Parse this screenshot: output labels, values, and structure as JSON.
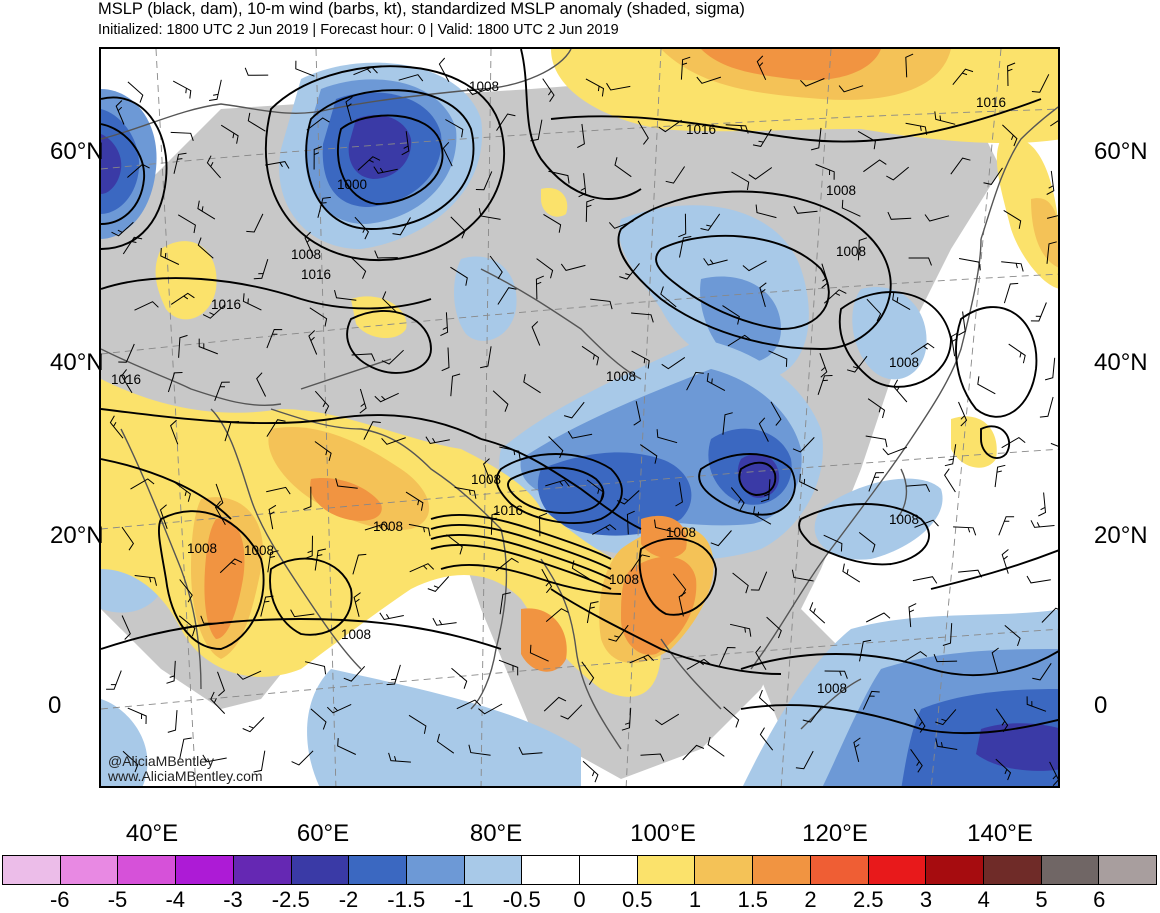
{
  "header": {
    "title": "MSLP (black, dam), 10-m wind (barbs, kt), standardized MSLP anomaly (shaded, sigma)",
    "subtitle": "Initialized: 1800 UTC 2 Jun 2019 | Forecast hour: 0 | Valid: 1800 UTC 2 Jun 2019"
  },
  "axes": {
    "lat_labels": [
      "60°N",
      "40°N",
      "20°N",
      "0"
    ],
    "lon_labels": [
      "40°E",
      "60°E",
      "80°E",
      "100°E",
      "120°E",
      "140°E"
    ]
  },
  "isobar_labels": [
    "1008",
    "1000",
    "1008",
    "1016",
    "1016",
    "1016",
    "1008",
    "1008",
    "1016",
    "1008",
    "1008",
    "1008",
    "1008",
    "1016",
    "1008",
    "1008",
    "1008",
    "1008",
    "1008",
    "1008",
    "1008",
    "1016"
  ],
  "credit": {
    "handle": "@AliciaMBentley",
    "site": "www.AliciaMBentley.com"
  },
  "colorbar": {
    "labels": [
      "-6",
      "-5",
      "-4",
      "-3",
      "-2.5",
      "-2",
      "-1.5",
      "-1",
      "-0.5",
      "0",
      "0.5",
      "1",
      "1.5",
      "2",
      "2.5",
      "3",
      "4",
      "5",
      "6"
    ],
    "colors": [
      "#ecbde9",
      "#e889e3",
      "#d651d9",
      "#ad1bd6",
      "#6528b3",
      "#3a3aa6",
      "#3b68c1",
      "#6d99d6",
      "#a8c9e8",
      "#ffffff",
      "#ffffff",
      "#fbe26b",
      "#f4c257",
      "#f19441",
      "#ef5e34",
      "#e8191b",
      "#a60c0f",
      "#6f2b28",
      "#706665",
      "#a89e9e"
    ]
  },
  "colors": {
    "land_neutral": "#c8c8c8",
    "coastline": "#555555",
    "isobar": "#000000"
  }
}
